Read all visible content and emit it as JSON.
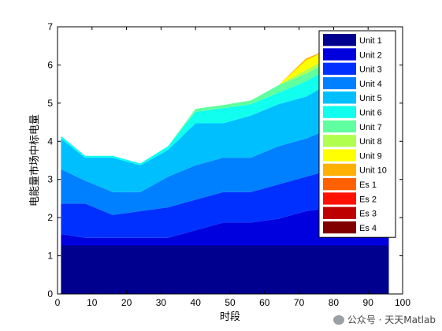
{
  "watermark": "公众号 · 天天Matlab",
  "chart_data": {
    "type": "area",
    "stacked": true,
    "xlabel": "时段",
    "ylabel": "电能量市场中标电量",
    "xlim": [
      0,
      100
    ],
    "ylim": [
      0,
      7
    ],
    "xticks": [
      0,
      10,
      20,
      30,
      40,
      50,
      60,
      70,
      80,
      90,
      100
    ],
    "yticks": [
      0,
      1,
      2,
      3,
      4,
      5,
      6,
      7
    ],
    "legend_position": "top-right",
    "grid": false,
    "series_names": [
      "Unit 1",
      "Unit 2",
      "Unit 3",
      "Unit 4",
      "Unit 5",
      "Unit 6",
      "Unit 7",
      "Unit 8",
      "Unit 9",
      "Unit 10",
      "Es 1",
      "Es 2",
      "Es 3",
      "Es 4"
    ],
    "colors": [
      "#00008f",
      "#0000df",
      "#0030ff",
      "#0080ff",
      "#00bfff",
      "#10ffef",
      "#60ff9f",
      "#b0ff4f",
      "#ffff00",
      "#ffb000",
      "#ff6000",
      "#ff1000",
      "#bf0000",
      "#800000"
    ],
    "x": [
      1,
      8,
      16,
      24,
      32,
      40,
      48,
      56,
      64,
      72,
      80,
      88,
      96
    ],
    "series": [
      {
        "name": "Unit 1",
        "values": [
          1.27,
          1.27,
          1.27,
          1.27,
          1.27,
          1.27,
          1.27,
          1.27,
          1.27,
          1.27,
          1.27,
          1.27,
          1.27
        ]
      },
      {
        "name": "Unit 2",
        "values": [
          0.3,
          0.2,
          0.2,
          0.2,
          0.2,
          0.4,
          0.6,
          0.6,
          0.7,
          0.9,
          1.0,
          1.0,
          1.0
        ]
      },
      {
        "name": "Unit 3",
        "values": [
          0.8,
          0.9,
          0.6,
          0.7,
          0.8,
          0.8,
          0.8,
          0.8,
          0.9,
          0.9,
          1.0,
          1.0,
          1.0
        ]
      },
      {
        "name": "Unit 4",
        "values": [
          0.9,
          0.6,
          0.6,
          0.5,
          0.8,
          0.9,
          0.9,
          0.9,
          1.0,
          1.0,
          1.1,
          1.1,
          1.1
        ]
      },
      {
        "name": "Unit 5",
        "values": [
          0.8,
          0.6,
          0.9,
          0.7,
          0.7,
          1.1,
          0.9,
          1.1,
          1.1,
          1.1,
          1.2,
          1.2,
          1.2
        ]
      },
      {
        "name": "Unit 6",
        "values": [
          0.07,
          0.05,
          0.05,
          0.05,
          0.1,
          0.3,
          0.4,
          0.3,
          0.3,
          0.4,
          0.4,
          0.4,
          0.4
        ]
      },
      {
        "name": "Unit 7",
        "values": [
          0,
          0,
          0,
          0,
          0,
          0.08,
          0.08,
          0.1,
          0.2,
          0.2,
          0.2,
          0.2,
          0.2
        ]
      },
      {
        "name": "Unit 8",
        "values": [
          0,
          0,
          0,
          0,
          0,
          0,
          0,
          0,
          0,
          0.1,
          0.1,
          0.1,
          0.1
        ]
      },
      {
        "name": "Unit 9",
        "values": [
          0,
          0,
          0,
          0,
          0,
          0,
          0,
          0,
          0,
          0.25,
          0.2,
          0.2,
          0.2
        ]
      },
      {
        "name": "Unit 10",
        "values": [
          0,
          0,
          0,
          0,
          0,
          0,
          0,
          0,
          0,
          0.05,
          0,
          0,
          0
        ]
      },
      {
        "name": "Es 1",
        "values": [
          0,
          0,
          0,
          0,
          0,
          0,
          0,
          0,
          0,
          0,
          0,
          0,
          0
        ]
      },
      {
        "name": "Es 2",
        "values": [
          0,
          0,
          0,
          0,
          0,
          0,
          0,
          0,
          0,
          0,
          0,
          0,
          0
        ]
      },
      {
        "name": "Es 3",
        "values": [
          0,
          0,
          0,
          0,
          0,
          0,
          0,
          0,
          0,
          0,
          0,
          0,
          0
        ]
      },
      {
        "name": "Es 4",
        "values": [
          0,
          0,
          0,
          0,
          0,
          0,
          0,
          0,
          0,
          0,
          0,
          0,
          0
        ]
      }
    ]
  }
}
